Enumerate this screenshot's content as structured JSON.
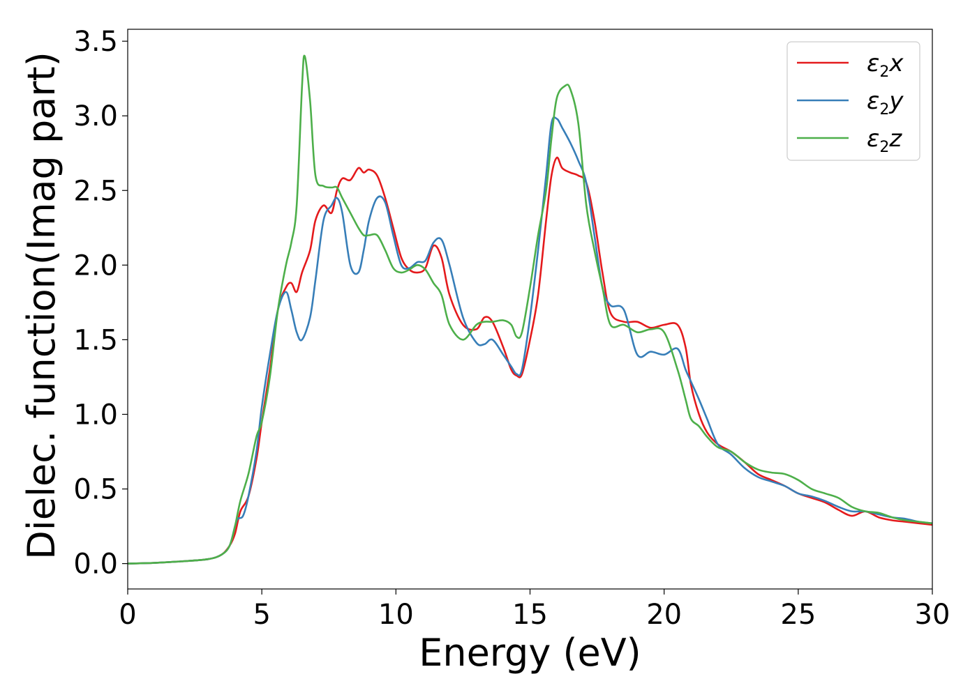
{
  "chart_data": {
    "type": "line",
    "xlabel": "Energy (eV)",
    "ylabel": "Dielec. function(Imag part)",
    "xlim": [
      0,
      30
    ],
    "ylim": [
      -0.17,
      3.58
    ],
    "xticks": [
      0,
      5,
      10,
      15,
      20,
      25,
      30
    ],
    "yticks": [
      0.0,
      0.5,
      1.0,
      1.5,
      2.0,
      2.5,
      3.0,
      3.5
    ],
    "xtick_labels": [
      "0",
      "5",
      "10",
      "15",
      "20",
      "25",
      "30"
    ],
    "ytick_labels": [
      "0.0",
      "0.5",
      "1.0",
      "1.5",
      "2.0",
      "2.5",
      "3.0",
      "3.5"
    ],
    "grid": false,
    "legend_position": "top-right",
    "series": [
      {
        "name": "ε2x",
        "legend_base": "ε",
        "legend_sub": "2",
        "legend_suffix": "x",
        "color": "#e41a1c",
        "x": [
          0,
          1,
          2,
          3,
          3.5,
          3.8,
          4.0,
          4.2,
          4.5,
          4.8,
          5.0,
          5.3,
          5.6,
          5.9,
          6.1,
          6.3,
          6.5,
          6.8,
          7.0,
          7.3,
          7.6,
          7.8,
          8.0,
          8.3,
          8.6,
          8.8,
          9.0,
          9.3,
          9.6,
          9.9,
          10.2,
          10.5,
          10.8,
          11.1,
          11.4,
          11.7,
          12.0,
          12.5,
          13.0,
          13.3,
          13.6,
          14.0,
          14.3,
          14.5,
          14.7,
          15.0,
          15.3,
          15.6,
          15.8,
          16.0,
          16.2,
          16.5,
          16.8,
          17.1,
          17.4,
          17.7,
          18.0,
          18.5,
          19.0,
          19.5,
          20.0,
          20.5,
          20.8,
          21.0,
          21.3,
          21.6,
          22.0,
          22.5,
          23.0,
          23.5,
          24.0,
          24.5,
          25.0,
          25.5,
          26.0,
          26.5,
          27.0,
          27.5,
          28.0,
          28.5,
          29.0,
          29.5,
          30.0
        ],
        "y": [
          0,
          0.005,
          0.015,
          0.03,
          0.06,
          0.12,
          0.2,
          0.35,
          0.45,
          0.7,
          0.95,
          1.3,
          1.7,
          1.85,
          1.88,
          1.82,
          1.95,
          2.1,
          2.3,
          2.4,
          2.35,
          2.5,
          2.58,
          2.57,
          2.65,
          2.62,
          2.64,
          2.6,
          2.45,
          2.25,
          2.05,
          1.97,
          1.95,
          1.98,
          2.13,
          2.05,
          1.8,
          1.6,
          1.57,
          1.65,
          1.62,
          1.45,
          1.3,
          1.26,
          1.27,
          1.5,
          1.8,
          2.3,
          2.6,
          2.72,
          2.65,
          2.62,
          2.6,
          2.55,
          2.3,
          1.95,
          1.68,
          1.62,
          1.62,
          1.58,
          1.6,
          1.6,
          1.45,
          1.2,
          1.0,
          0.88,
          0.8,
          0.75,
          0.68,
          0.6,
          0.56,
          0.52,
          0.47,
          0.44,
          0.41,
          0.36,
          0.32,
          0.35,
          0.31,
          0.29,
          0.28,
          0.27,
          0.26
        ]
      },
      {
        "name": "ε2y",
        "legend_base": "ε",
        "legend_sub": "2",
        "legend_suffix": "y",
        "color": "#377eb8",
        "x": [
          0,
          1,
          2,
          3,
          3.5,
          3.8,
          4.0,
          4.1,
          4.3,
          4.5,
          4.8,
          5.0,
          5.3,
          5.6,
          5.9,
          6.1,
          6.3,
          6.5,
          6.8,
          7.0,
          7.3,
          7.6,
          7.8,
          8.0,
          8.3,
          8.6,
          8.8,
          9.0,
          9.3,
          9.6,
          9.9,
          10.2,
          10.5,
          10.8,
          11.1,
          11.4,
          11.7,
          12.0,
          12.5,
          13.0,
          13.3,
          13.6,
          14.0,
          14.3,
          14.5,
          14.7,
          15.0,
          15.3,
          15.6,
          15.8,
          16.0,
          16.2,
          16.5,
          16.8,
          17.1,
          17.4,
          17.7,
          18.0,
          18.5,
          19.0,
          19.5,
          20.0,
          20.5,
          20.8,
          21.0,
          21.3,
          21.6,
          22.0,
          22.5,
          23.0,
          23.5,
          24.0,
          24.5,
          25.0,
          25.5,
          26.0,
          26.5,
          27.0,
          27.5,
          28.0,
          28.5,
          29.0,
          29.5,
          30.0
        ],
        "y": [
          0,
          0.005,
          0.015,
          0.03,
          0.06,
          0.12,
          0.25,
          0.3,
          0.32,
          0.45,
          0.75,
          1.05,
          1.4,
          1.7,
          1.82,
          1.7,
          1.55,
          1.5,
          1.65,
          1.9,
          2.3,
          2.4,
          2.45,
          2.35,
          2.0,
          1.95,
          2.1,
          2.3,
          2.45,
          2.42,
          2.2,
          2.0,
          1.98,
          2.02,
          2.03,
          2.15,
          2.17,
          2.0,
          1.65,
          1.48,
          1.47,
          1.5,
          1.4,
          1.32,
          1.27,
          1.3,
          1.65,
          2.1,
          2.6,
          2.95,
          2.98,
          2.92,
          2.82,
          2.7,
          2.55,
          2.2,
          1.85,
          1.73,
          1.7,
          1.4,
          1.42,
          1.4,
          1.44,
          1.3,
          1.22,
          1.1,
          0.97,
          0.8,
          0.73,
          0.64,
          0.58,
          0.55,
          0.52,
          0.47,
          0.45,
          0.42,
          0.38,
          0.35,
          0.35,
          0.33,
          0.31,
          0.3,
          0.28,
          0.27
        ]
      },
      {
        "name": "ε2z",
        "legend_base": "ε",
        "legend_sub": "2",
        "legend_suffix": "z",
        "color": "#4daf4a",
        "x": [
          0,
          1,
          2,
          3,
          3.5,
          3.8,
          4.0,
          4.2,
          4.5,
          4.8,
          5.0,
          5.3,
          5.6,
          5.9,
          6.1,
          6.3,
          6.5,
          6.6,
          6.8,
          7.0,
          7.3,
          7.6,
          7.8,
          8.0,
          8.3,
          8.6,
          8.8,
          9.0,
          9.3,
          9.6,
          9.9,
          10.2,
          10.5,
          10.8,
          11.1,
          11.4,
          11.7,
          12.0,
          12.5,
          13.0,
          13.3,
          13.6,
          14.0,
          14.3,
          14.5,
          14.7,
          15.0,
          15.3,
          15.6,
          15.8,
          16.0,
          16.3,
          16.5,
          16.8,
          17.1,
          17.4,
          17.7,
          18.0,
          18.5,
          19.0,
          19.5,
          20.0,
          20.5,
          20.8,
          21.0,
          21.3,
          21.6,
          22.0,
          22.5,
          23.0,
          23.5,
          24.0,
          24.5,
          25.0,
          25.5,
          26.0,
          26.5,
          27.0,
          27.5,
          28.0,
          28.5,
          29.0,
          29.5,
          30.0
        ],
        "y": [
          0,
          0.005,
          0.015,
          0.03,
          0.06,
          0.12,
          0.25,
          0.42,
          0.6,
          0.85,
          0.95,
          1.25,
          1.7,
          2.0,
          2.15,
          2.4,
          3.2,
          3.4,
          3.1,
          2.6,
          2.53,
          2.52,
          2.52,
          2.45,
          2.35,
          2.25,
          2.2,
          2.2,
          2.2,
          2.1,
          1.98,
          1.95,
          1.97,
          2.0,
          1.97,
          1.88,
          1.8,
          1.6,
          1.5,
          1.6,
          1.62,
          1.62,
          1.63,
          1.6,
          1.52,
          1.55,
          1.85,
          2.2,
          2.5,
          2.85,
          3.12,
          3.2,
          3.18,
          2.95,
          2.4,
          2.1,
          1.85,
          1.6,
          1.6,
          1.55,
          1.57,
          1.55,
          1.3,
          1.1,
          0.97,
          0.92,
          0.85,
          0.78,
          0.75,
          0.68,
          0.63,
          0.61,
          0.6,
          0.56,
          0.5,
          0.47,
          0.44,
          0.38,
          0.35,
          0.34,
          0.31,
          0.29,
          0.28,
          0.27
        ]
      }
    ]
  }
}
